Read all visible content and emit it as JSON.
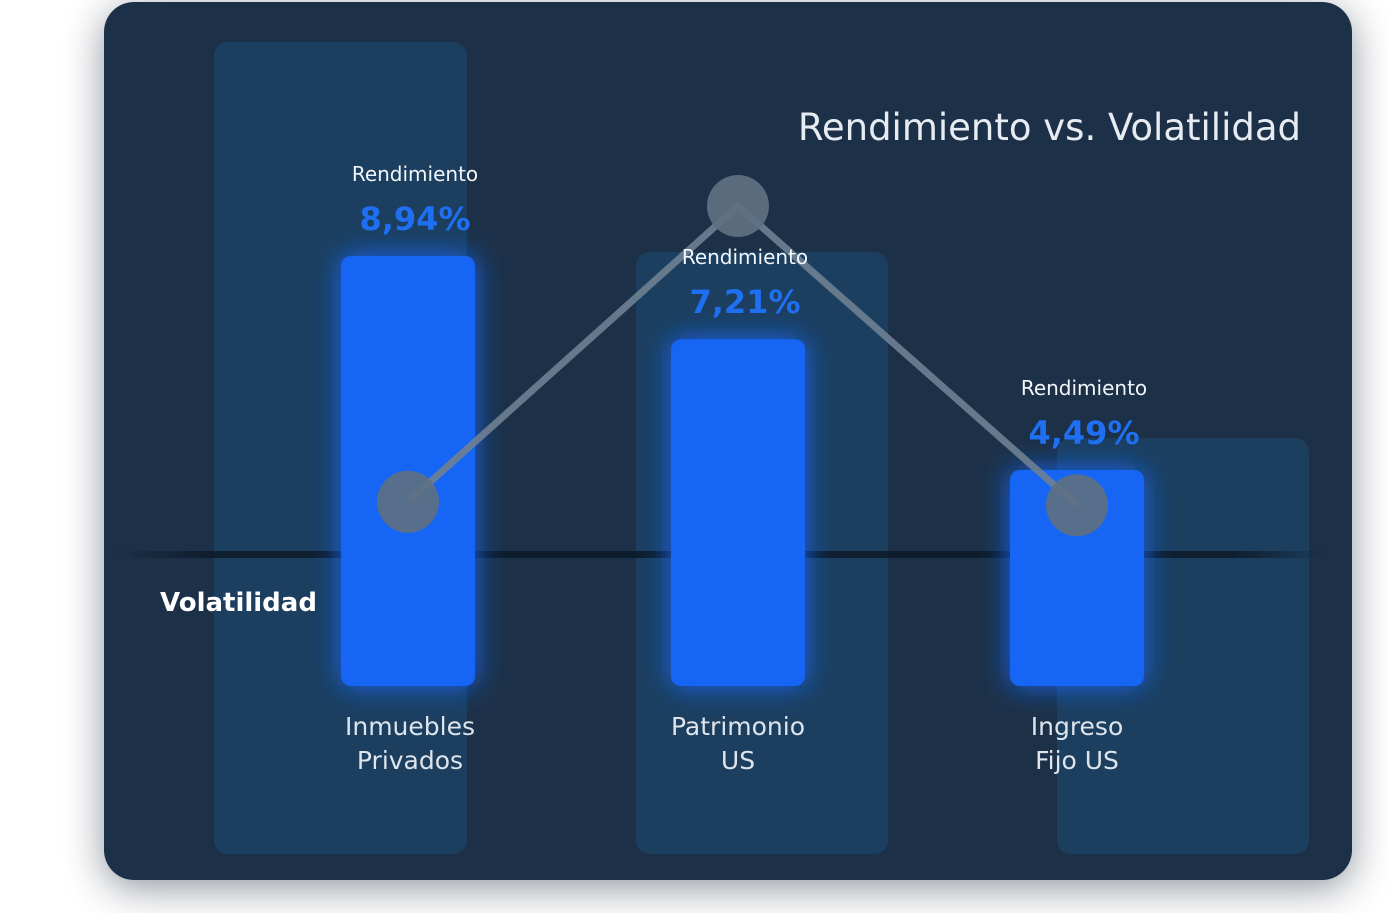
{
  "chart_data": {
    "type": "bar",
    "title": "Rendimiento vs. Volatilidad",
    "categories": [
      [
        "Inmuebles",
        "Privados"
      ],
      [
        "Patrimonio",
        "US"
      ],
      [
        "Ingreso",
        "Fijo US"
      ]
    ],
    "series": [
      {
        "name": "Rendimiento",
        "type": "bar",
        "values": [
          8.94,
          7.21,
          4.49
        ],
        "labels": [
          "8,94%",
          "7,21%",
          "4,49%"
        ]
      },
      {
        "name": "Volatilidad",
        "type": "line",
        "relative_values": [
          0.15,
          1.0,
          0.14
        ]
      }
    ],
    "point_caption": "Rendimiento",
    "volatility_label": "Volatilidad",
    "grid": false,
    "legend": "none",
    "colors": {
      "card": "#1c3148",
      "bar": "#1565f5",
      "bar_glow": "#1e6ff2",
      "value_text": "#1e6ff2",
      "line": "#6f8192",
      "node": "#5e7082",
      "column_bg": "#1e4a74"
    }
  }
}
